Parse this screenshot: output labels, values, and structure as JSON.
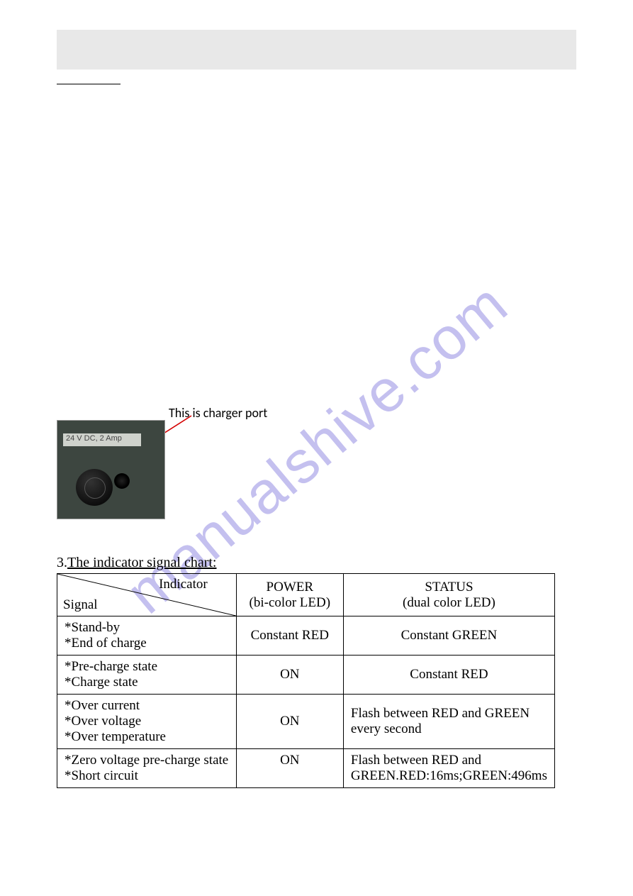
{
  "watermark": {
    "text": "manualshive.com",
    "color": "rgba(125,115,220,0.45)",
    "fontsize": 84
  },
  "annotation": {
    "text": "This is charger port",
    "arrow_color": "#d40000"
  },
  "photo": {
    "label_text": "24 V DC, 2 Amp"
  },
  "section": {
    "number": "3.",
    "title": "The indicator signal chart:"
  },
  "table": {
    "type": "table",
    "header": {
      "diag_top": "Indicator",
      "diag_bottom": "Signal",
      "power": "POWER",
      "power_sub": "(bi-color LED)",
      "status": "STATUS",
      "status_sub": "(dual color LED)"
    },
    "rows": [
      {
        "signal": "*Stand-by\n*End of charge",
        "power": "Constant RED",
        "status": "Constant GREEN",
        "power_align": "center",
        "status_align": "center"
      },
      {
        "signal": "*Pre-charge state\n*Charge state",
        "power": "ON",
        "status": "Constant RED",
        "power_align": "center",
        "status_align": "center"
      },
      {
        "signal": "*Over current\n*Over voltage\n*Over temperature",
        "power": "ON",
        "status": "Flash between RED and GREEN every second",
        "power_align": "center",
        "status_align": "left"
      },
      {
        "signal": "*Zero voltage pre-charge state\n*Short circuit",
        "power": "ON",
        "status": "Flash between RED and GREEN.RED:16ms;GREEN:496ms",
        "power_align": "center",
        "status_align": "left",
        "signal_valign": "top",
        "power_valign": "top"
      }
    ],
    "border_color": "#000000",
    "fontsize": 19
  },
  "colors": {
    "header_band": "#e8e8e8",
    "background": "#ffffff"
  }
}
